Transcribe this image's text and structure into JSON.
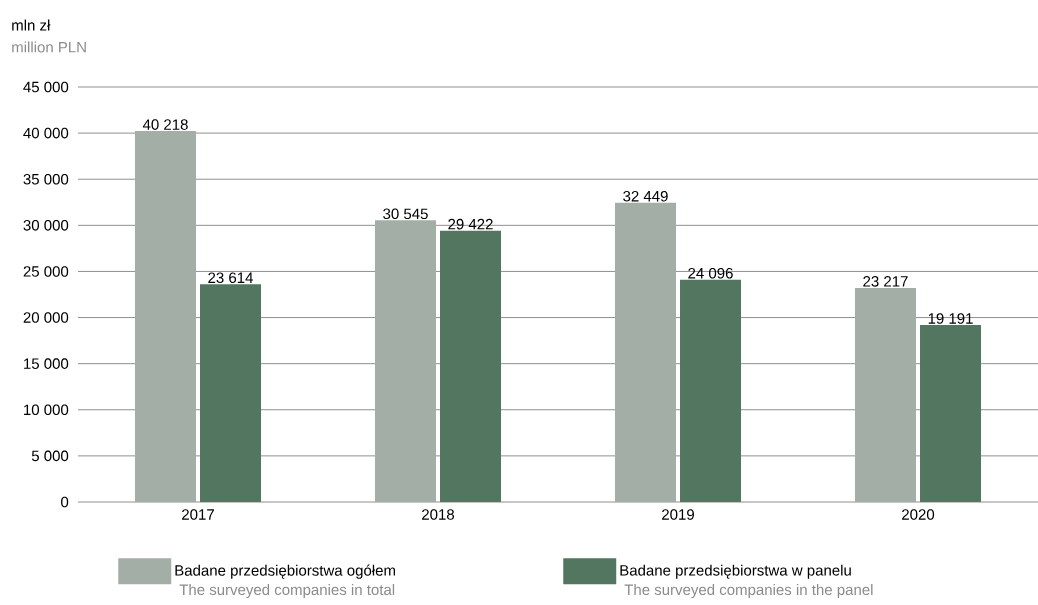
{
  "chart_data": {
    "type": "bar",
    "ylabel": "mln zł",
    "subtitle": "million PLN",
    "categories": [
      "2017",
      "2018",
      "2019",
      "2020"
    ],
    "series": [
      {
        "name": "Badane przedsiębiorstwa ogółem",
        "color": "#a2aea6",
        "values": [
          40218,
          30545,
          32449,
          23217
        ],
        "value_labels": [
          "40 218",
          "30 545",
          "32 449",
          "23 217"
        ]
      },
      {
        "name": "Badane przedsiębiorstwa w panelu",
        "color": "#537661",
        "values": [
          23614,
          29422,
          24096,
          19191
        ],
        "value_labels": [
          "23 614",
          "29 422",
          "24 096",
          "19 191"
        ]
      }
    ],
    "annotations": [
      "The surveyed companies in total",
      "The surveyed companies in the panel"
    ],
    "ylim": [
      0,
      45000
    ],
    "yticks": [
      {
        "value": 0,
        "label": "0"
      },
      {
        "value": 5000,
        "label": "5 000"
      },
      {
        "value": 10000,
        "label": "10 000"
      },
      {
        "value": 15000,
        "label": "15 000"
      },
      {
        "value": 20000,
        "label": "20 000"
      },
      {
        "value": 25000,
        "label": "25 000"
      },
      {
        "value": 30000,
        "label": "30 000"
      },
      {
        "value": 35000,
        "label": "35 000"
      },
      {
        "value": 40000,
        "label": "40 000"
      },
      {
        "value": 45000,
        "label": "45 000"
      }
    ],
    "grid": "y",
    "legend": "bottom"
  }
}
